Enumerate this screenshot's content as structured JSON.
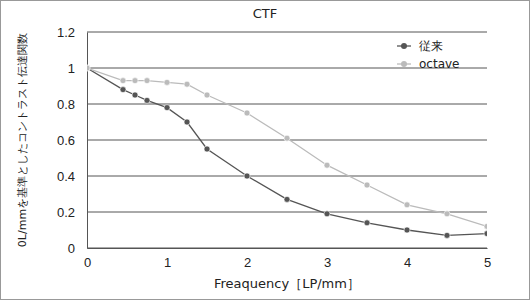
{
  "chart_data": {
    "type": "line",
    "title": "CTF",
    "x_label": "Freaquency［LP/mm］",
    "y_label": "0L/mmを基準としたコントラスト伝達関数",
    "x": [
      0,
      0.45,
      0.6,
      0.75,
      1,
      1.25,
      1.5,
      2,
      2.5,
      3,
      3.5,
      4,
      4.5,
      5
    ],
    "series": [
      {
        "name": "従来",
        "color": "#555555",
        "marker": "circle",
        "values": [
          1,
          0.88,
          0.85,
          0.82,
          0.78,
          0.7,
          0.55,
          0.4,
          0.27,
          0.19,
          0.14,
          0.1,
          0.07,
          0.08
        ]
      },
      {
        "name": "octave",
        "color": "#bbbbbb",
        "marker": "circle",
        "values": [
          1,
          0.93,
          0.93,
          0.93,
          0.92,
          0.91,
          0.85,
          0.75,
          0.61,
          0.46,
          0.35,
          0.24,
          0.19,
          0.12
        ]
      }
    ],
    "xlim": [
      0,
      5
    ],
    "xticks": [
      0,
      1,
      2,
      3,
      4,
      5
    ],
    "ylim": [
      0,
      1.2
    ],
    "yticks": [
      0,
      0.2,
      0.4,
      0.6,
      0.8,
      1,
      1.2
    ],
    "grid": true,
    "legend": "top-right"
  }
}
